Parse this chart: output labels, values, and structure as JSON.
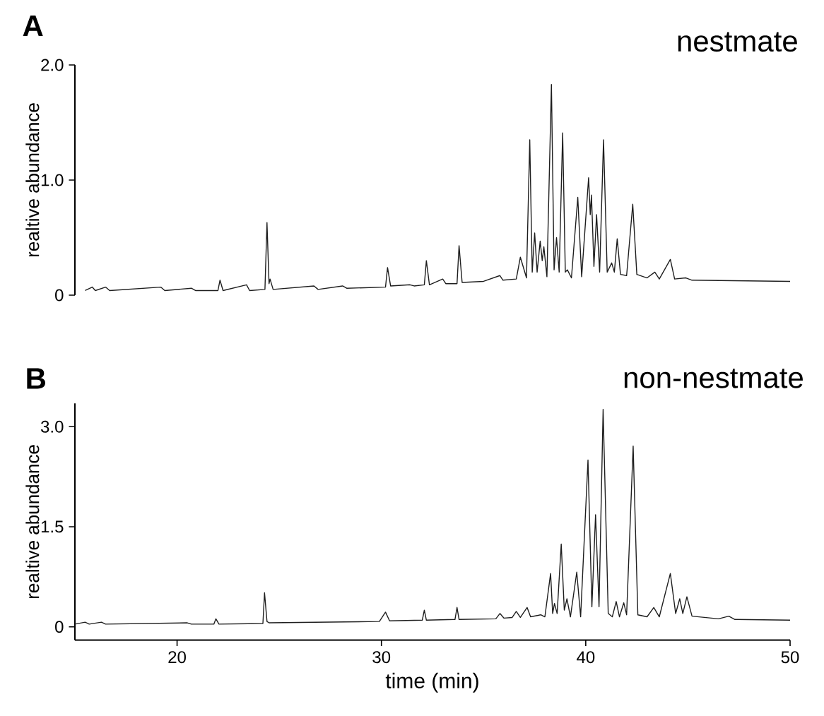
{
  "chart_data": [
    {
      "type": "line",
      "title": "nestmate",
      "annotations": [
        "A"
      ],
      "ylabel": "realtive abundance",
      "xlim": [
        15,
        50
      ],
      "ylim": [
        0,
        2.0
      ],
      "yticks": [
        {
          "value": 0,
          "label": "0"
        },
        {
          "value": 1,
          "label": "1.0"
        },
        {
          "value": 2,
          "label": "2.0"
        }
      ],
      "tick_labels": "y",
      "series": [
        {
          "color": "#1e1e1e",
          "x": [
            15.5,
            15.85,
            16.0,
            16.5,
            16.7,
            19.2,
            19.4,
            20.7,
            20.9,
            22.0,
            22.1,
            22.25,
            23.4,
            23.55,
            24.3,
            24.4,
            24.5,
            24.55,
            24.7,
            26.7,
            26.9,
            28.1,
            28.3,
            30.2,
            30.3,
            30.45,
            31.4,
            31.6,
            32.1,
            32.2,
            32.35,
            33.0,
            33.15,
            33.7,
            33.8,
            33.95,
            35.0,
            35.8,
            35.95,
            36.6,
            36.8,
            37.1,
            37.26,
            37.38,
            37.5,
            37.62,
            37.77,
            37.87,
            37.95,
            38.1,
            38.32,
            38.45,
            38.57,
            38.7,
            38.87,
            39.0,
            39.1,
            39.3,
            39.61,
            39.8,
            40.14,
            40.22,
            40.28,
            40.4,
            40.53,
            40.68,
            40.87,
            41.05,
            41.27,
            41.4,
            41.54,
            41.7,
            42.0,
            42.3,
            42.5,
            43.0,
            43.38,
            43.6,
            44.14,
            44.35,
            44.9,
            45.2,
            50.0
          ],
          "values": [
            0.04,
            0.07,
            0.04,
            0.07,
            0.04,
            0.07,
            0.04,
            0.06,
            0.04,
            0.04,
            0.13,
            0.04,
            0.09,
            0.04,
            0.05,
            0.63,
            0.1,
            0.14,
            0.05,
            0.08,
            0.05,
            0.08,
            0.06,
            0.07,
            0.24,
            0.08,
            0.09,
            0.08,
            0.09,
            0.3,
            0.09,
            0.14,
            0.1,
            0.1,
            0.43,
            0.11,
            0.12,
            0.17,
            0.13,
            0.14,
            0.33,
            0.15,
            1.35,
            0.2,
            0.54,
            0.2,
            0.47,
            0.3,
            0.42,
            0.16,
            1.83,
            0.22,
            0.5,
            0.2,
            1.41,
            0.2,
            0.22,
            0.15,
            0.85,
            0.16,
            1.02,
            0.7,
            0.87,
            0.25,
            0.7,
            0.2,
            1.35,
            0.2,
            0.28,
            0.2,
            0.49,
            0.18,
            0.17,
            0.79,
            0.18,
            0.15,
            0.2,
            0.14,
            0.31,
            0.14,
            0.15,
            0.13,
            0.12
          ]
        }
      ]
    },
    {
      "type": "line",
      "title": "non-nestmate",
      "annotations": [
        "B"
      ],
      "xlabel": "time (min)",
      "ylabel": "realtive abundance",
      "xlim": [
        15,
        50
      ],
      "ylim": [
        -0.2,
        3.35
      ],
      "xticks": [
        20,
        30,
        40,
        50
      ],
      "yticks": [
        {
          "value": 0,
          "label": "0"
        },
        {
          "value": 1.5,
          "label": "1.5"
        },
        {
          "value": 3,
          "label": "3.0"
        }
      ],
      "series": [
        {
          "color": "#1e1e1e",
          "x": [
            15.0,
            15.5,
            15.7,
            16.3,
            16.5,
            20.5,
            20.7,
            21.8,
            21.9,
            22.05,
            24.2,
            24.28,
            24.4,
            24.5,
            29.9,
            30.2,
            30.4,
            32.0,
            32.1,
            32.2,
            33.6,
            33.7,
            33.8,
            35.6,
            35.8,
            36.0,
            36.4,
            36.6,
            36.8,
            37.13,
            37.3,
            37.8,
            38.0,
            38.28,
            38.38,
            38.47,
            38.6,
            38.8,
            38.95,
            39.08,
            39.25,
            39.56,
            39.75,
            40.11,
            40.3,
            40.48,
            40.65,
            40.85,
            41.1,
            41.3,
            41.49,
            41.65,
            41.86,
            42.0,
            42.32,
            42.55,
            43.0,
            43.33,
            43.6,
            44.14,
            44.4,
            44.6,
            44.75,
            44.95,
            45.2,
            46.5,
            47.0,
            47.3,
            50.0
          ],
          "values": [
            0.04,
            0.07,
            0.04,
            0.07,
            0.04,
            0.06,
            0.04,
            0.04,
            0.12,
            0.04,
            0.05,
            0.51,
            0.08,
            0.06,
            0.08,
            0.22,
            0.09,
            0.1,
            0.25,
            0.1,
            0.11,
            0.29,
            0.11,
            0.12,
            0.2,
            0.13,
            0.14,
            0.23,
            0.14,
            0.29,
            0.15,
            0.18,
            0.15,
            0.8,
            0.2,
            0.35,
            0.2,
            1.24,
            0.25,
            0.42,
            0.15,
            0.82,
            0.15,
            2.5,
            0.3,
            1.68,
            0.3,
            3.26,
            0.2,
            0.15,
            0.38,
            0.15,
            0.36,
            0.18,
            2.71,
            0.18,
            0.15,
            0.29,
            0.15,
            0.8,
            0.2,
            0.42,
            0.2,
            0.45,
            0.16,
            0.12,
            0.16,
            0.11,
            0.1
          ]
        }
      ]
    }
  ]
}
